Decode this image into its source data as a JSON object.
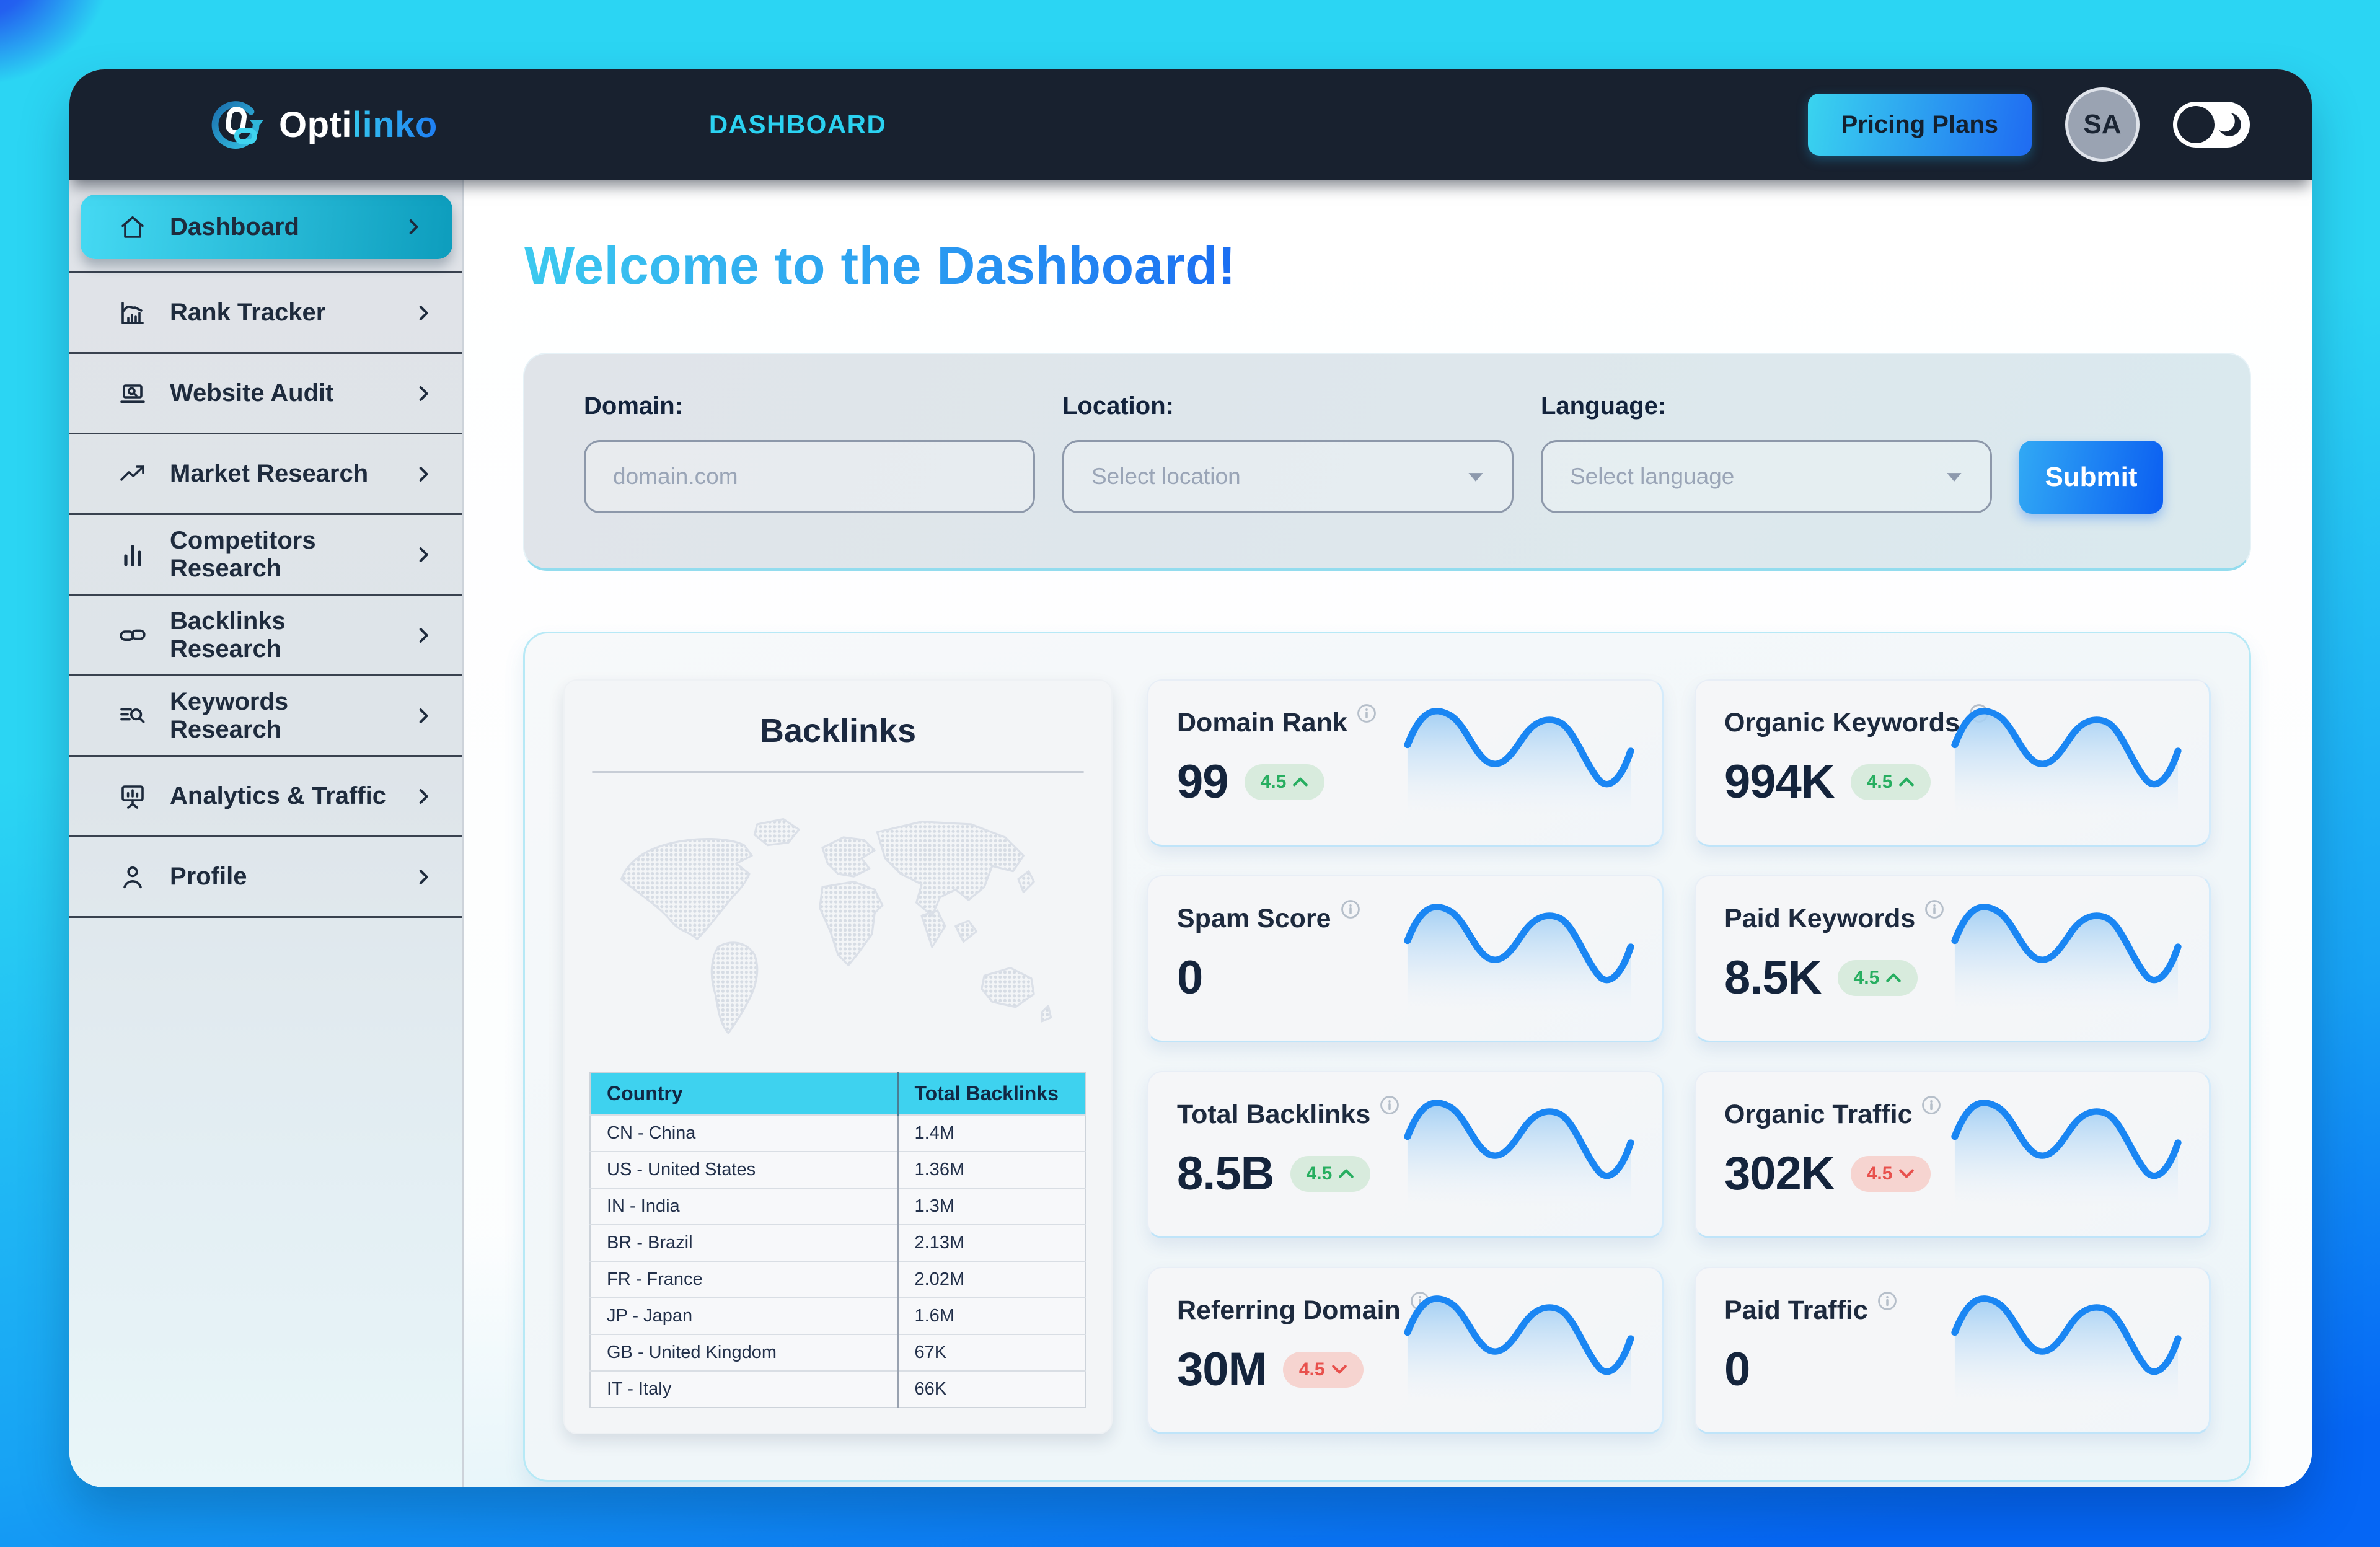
{
  "navbar": {
    "logo": {
      "text_primary": "Opti",
      "text_secondary": "linko"
    },
    "page_title": "DASHBOARD",
    "pricing_button": "Pricing Plans",
    "avatar_initials": "SA"
  },
  "sidebar": {
    "items": [
      {
        "label": "Dashboard",
        "icon": "home",
        "active": true
      },
      {
        "label": "Rank Tracker",
        "icon": "rank",
        "active": false
      },
      {
        "label": "Website Audit",
        "icon": "audit",
        "active": false
      },
      {
        "label": "Market Research",
        "icon": "market",
        "active": false
      },
      {
        "label": "Competitors Research",
        "icon": "competitors",
        "active": false
      },
      {
        "label": "Backlinks Research",
        "icon": "backlinks",
        "active": false
      },
      {
        "label": "Keywords Research",
        "icon": "keywords",
        "active": false
      },
      {
        "label": "Analytics & Traffic",
        "icon": "analytics",
        "active": false
      },
      {
        "label": "Profile",
        "icon": "profile",
        "active": false
      }
    ]
  },
  "main": {
    "welcome_title": "Welcome to the Dashboard!",
    "form": {
      "domain_label": "Domain:",
      "domain_placeholder": "domain.com",
      "location_label": "Location:",
      "location_placeholder": "Select location",
      "language_label": "Language:",
      "language_placeholder": "Select language",
      "submit_label": "Submit"
    },
    "backlinks_panel": {
      "title": "Backlinks",
      "table": {
        "headers": [
          "Country",
          "Total Backlinks"
        ],
        "rows": [
          [
            "CN - China",
            "1.4M"
          ],
          [
            "US - United States",
            "1.36M"
          ],
          [
            "IN - India",
            "1.3M"
          ],
          [
            "BR - Brazil",
            "2.13M"
          ],
          [
            "FR - France",
            "2.02M"
          ],
          [
            "JP - Japan",
            "1.6M"
          ],
          [
            "GB - United Kingdom",
            "67K"
          ],
          [
            "IT - Italy",
            "66K"
          ]
        ]
      }
    },
    "stat_cards": [
      {
        "title": "Domain Rank",
        "value": "99",
        "badge": {
          "text": "4.5",
          "direction": "up"
        }
      },
      {
        "title": "Organic Keywords",
        "value": "994K",
        "badge": {
          "text": "4.5",
          "direction": "up"
        }
      },
      {
        "title": "Spam Score",
        "value": "0",
        "badge": null
      },
      {
        "title": "Paid Keywords",
        "value": "8.5K",
        "badge": {
          "text": "4.5",
          "direction": "up"
        }
      },
      {
        "title": "Total Backlinks",
        "value": "8.5B",
        "badge": {
          "text": "4.5",
          "direction": "up"
        }
      },
      {
        "title": "Organic Traffic",
        "value": "302K",
        "badge": {
          "text": "4.5",
          "direction": "down"
        }
      },
      {
        "title": "Referring Domain",
        "value": "30M",
        "badge": {
          "text": "4.5",
          "direction": "down"
        }
      },
      {
        "title": "Paid Traffic",
        "value": "0",
        "badge": null
      }
    ]
  },
  "colors": {
    "accent_cyan": "#2bd2f1",
    "brand_blue": "#0b66f5",
    "navbar_navy": "#18212f",
    "active_item_start": "#45d9f3",
    "active_item_end": "#0d9dbd",
    "table_header": "#3ed2ef",
    "spark_line": "#1a86f3",
    "badge_up": "#27ae60",
    "badge_down": "#e8514d"
  }
}
